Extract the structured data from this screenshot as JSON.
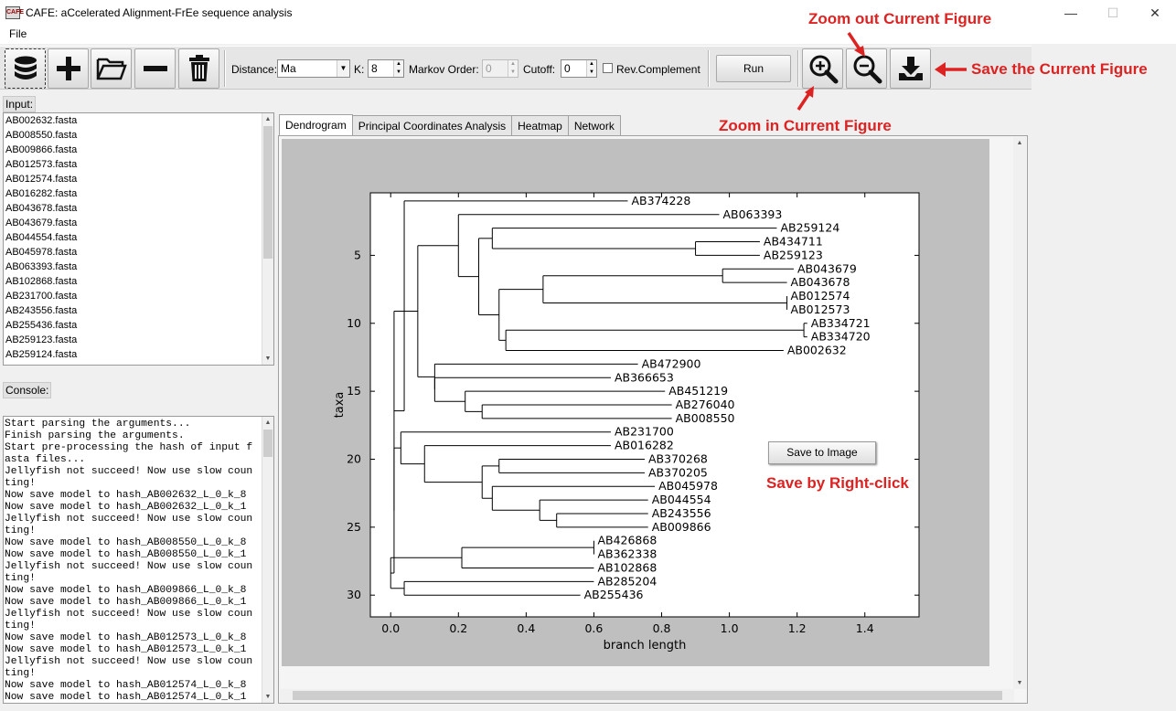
{
  "window": {
    "title": "CAFE: aCcelerated Alignment-FrEe sequence analysis",
    "app_icon_text": "CAFE"
  },
  "menu": {
    "file": "File"
  },
  "toolbar": {
    "distance_label": "Distance:",
    "distance_value": "Ma",
    "k_label": "K:",
    "k_value": "8",
    "markov_label": "Markov Order:",
    "markov_value": "0",
    "cutoff_label": "Cutoff:",
    "cutoff_value": "0",
    "revcomp_label": "Rev.Complement",
    "run_label": "Run"
  },
  "annotations": {
    "zoom_out": "Zoom out Current Figure",
    "zoom_in": "Zoom in Current Figure",
    "save": "Save the Current Figure",
    "right_click": "Save by Right-click"
  },
  "input": {
    "label": "Input:",
    "files": [
      "AB002632.fasta",
      "AB008550.fasta",
      "AB009866.fasta",
      "AB012573.fasta",
      "AB012574.fasta",
      "AB016282.fasta",
      "AB043678.fasta",
      "AB043679.fasta",
      "AB044554.fasta",
      "AB045978.fasta",
      "AB063393.fasta",
      "AB102868.fasta",
      "AB231700.fasta",
      "AB243556.fasta",
      "AB255436.fasta",
      "AB259123.fasta",
      "AB259124.fasta"
    ]
  },
  "console": {
    "label": "Console:",
    "lines": [
      "Start parsing the arguments...",
      "Finish parsing the arguments.",
      "Start pre-processing the hash of input f",
      "asta files...",
      "Jellyfish not succeed! Now use slow coun",
      "ting!",
      "Now save model to hash_AB002632_L_0_k_8",
      "Now save model to hash_AB002632_L_0_k_1",
      "Jellyfish not succeed! Now use slow coun",
      "ting!",
      "Now save model to hash_AB008550_L_0_k_8",
      "Now save model to hash_AB008550_L_0_k_1",
      "Jellyfish not succeed! Now use slow coun",
      "ting!",
      "Now save model to hash_AB009866_L_0_k_8",
      "Now save model to hash_AB009866_L_0_k_1",
      "Jellyfish not succeed! Now use slow coun",
      "ting!",
      "Now save model to hash_AB012573_L_0_k_8",
      "Now save model to hash_AB012573_L_0_k_1",
      "Jellyfish not succeed! Now use slow coun",
      "ting!",
      "Now save model to hash_AB012574_L_0_k_8",
      "Now save model to hash_AB012574_L_0_k_1"
    ]
  },
  "tabs": [
    "Dendrogram",
    "Principal Coordinates Analysis",
    "Heatmap",
    "Network"
  ],
  "context_menu": {
    "save_image": "Save to Image"
  },
  "chart_data": {
    "type": "dendrogram",
    "xlabel": "branch length",
    "ylabel": "taxa",
    "xlim": [
      -0.06,
      1.56
    ],
    "ylim": [
      0.4,
      31.6
    ],
    "xticks": [
      0.0,
      0.2,
      0.4,
      0.6,
      0.8,
      1.0,
      1.2,
      1.4
    ],
    "yticks": [
      5,
      10,
      15,
      20,
      25,
      30
    ],
    "leaves": [
      {
        "name": "AB374228",
        "x": 0.7
      },
      {
        "name": "AB063393",
        "x": 0.97
      },
      {
        "name": "AB259124",
        "x": 1.14
      },
      {
        "name": "AB434711",
        "x": 1.09
      },
      {
        "name": "AB259123",
        "x": 1.09
      },
      {
        "name": "AB043679",
        "x": 1.19
      },
      {
        "name": "AB043678",
        "x": 1.17
      },
      {
        "name": "AB012574",
        "x": 1.17
      },
      {
        "name": "AB012573",
        "x": 1.17
      },
      {
        "name": "AB334721",
        "x": 1.23
      },
      {
        "name": "AB334720",
        "x": 1.23
      },
      {
        "name": "AB002632",
        "x": 1.16
      },
      {
        "name": "AB472900",
        "x": 0.73
      },
      {
        "name": "AB366653",
        "x": 0.65
      },
      {
        "name": "AB451219",
        "x": 0.81
      },
      {
        "name": "AB276040",
        "x": 0.83
      },
      {
        "name": "AB008550",
        "x": 0.83
      },
      {
        "name": "AB231700",
        "x": 0.65
      },
      {
        "name": "AB016282",
        "x": 0.65
      },
      {
        "name": "AB370268",
        "x": 0.75
      },
      {
        "name": "AB370205",
        "x": 0.75
      },
      {
        "name": "AB045978",
        "x": 0.78
      },
      {
        "name": "AB044554",
        "x": 0.76
      },
      {
        "name": "AB243556",
        "x": 0.76
      },
      {
        "name": "AB009866",
        "x": 0.76
      },
      {
        "name": "AB426868",
        "x": 0.6
      },
      {
        "name": "AB362338",
        "x": 0.6
      },
      {
        "name": "AB102868",
        "x": 0.6
      },
      {
        "name": "AB285204",
        "x": 0.6
      },
      {
        "name": "AB255436",
        "x": 0.56
      }
    ],
    "links": [
      [
        3,
        4,
        0.9
      ],
      [
        16,
        0.89
      ],
      [
        17,
        18,
        1.17
      ],
      [
        19,
        20,
        0.98
      ],
      [
        21,
        22,
        0.45
      ],
      [
        10,
        11,
        1.22
      ],
      [
        23,
        0.34
      ],
      [
        24,
        25,
        0.32
      ],
      [
        27,
        12,
        0.12
      ],
      [
        28,
        26,
        0.1
      ],
      [
        14,
        15,
        0.27
      ],
      [
        16,
        30,
        0.22
      ],
      [
        13,
        31,
        0.13
      ],
      [
        32,
        0.08
      ],
      [
        20,
        21,
        0.32
      ],
      [
        22,
        23,
        0.49
      ],
      [
        24,
        25,
        0.44
      ],
      [
        26,
        27,
        0.3
      ],
      [
        28,
        29,
        0.27
      ],
      [
        29,
        30,
        0.1
      ],
      [
        32,
        33,
        0.03
      ],
      [
        26,
        27,
        0.6
      ],
      [
        36,
        28,
        0.21
      ],
      [
        29,
        30,
        0.04
      ],
      [
        38,
        39,
        0.0
      ]
    ]
  }
}
